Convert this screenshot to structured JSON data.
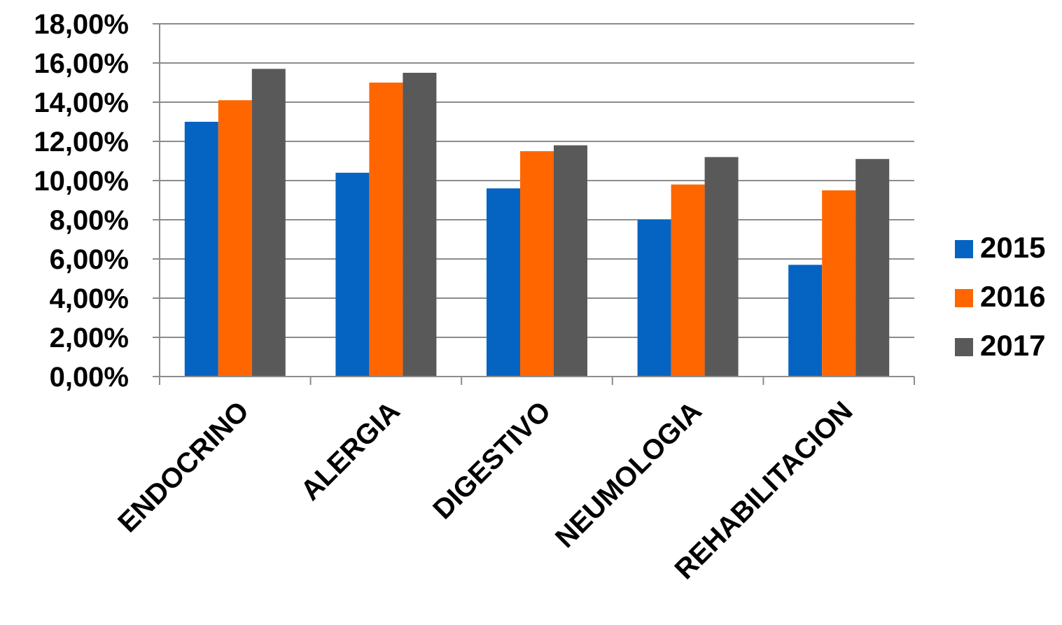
{
  "chart_data": {
    "type": "bar",
    "categories": [
      "ENDOCRINO",
      "ALERGIA",
      "DIGESTIVO",
      "NEUMOLOGIA",
      "REHABILITACION"
    ],
    "series": [
      {
        "name": "2015",
        "color": "#0563C1",
        "values": [
          0.13,
          0.104,
          0.096,
          0.08,
          0.057
        ]
      },
      {
        "name": "2016",
        "color": "#FF6600",
        "values": [
          0.141,
          0.15,
          0.115,
          0.098,
          0.095
        ]
      },
      {
        "name": "2017",
        "color": "#595959",
        "values": [
          0.157,
          0.155,
          0.118,
          0.112,
          0.111
        ]
      }
    ],
    "y_ticks": [
      "0,00%",
      "2,00%",
      "4,00%",
      "6,00%",
      "8,00%",
      "10,00%",
      "12,00%",
      "14,00%",
      "16,00%",
      "18,00%"
    ],
    "ylim": [
      0,
      0.18
    ],
    "grid": true,
    "legend": "right",
    "title": "",
    "xlabel": "",
    "ylabel": ""
  }
}
